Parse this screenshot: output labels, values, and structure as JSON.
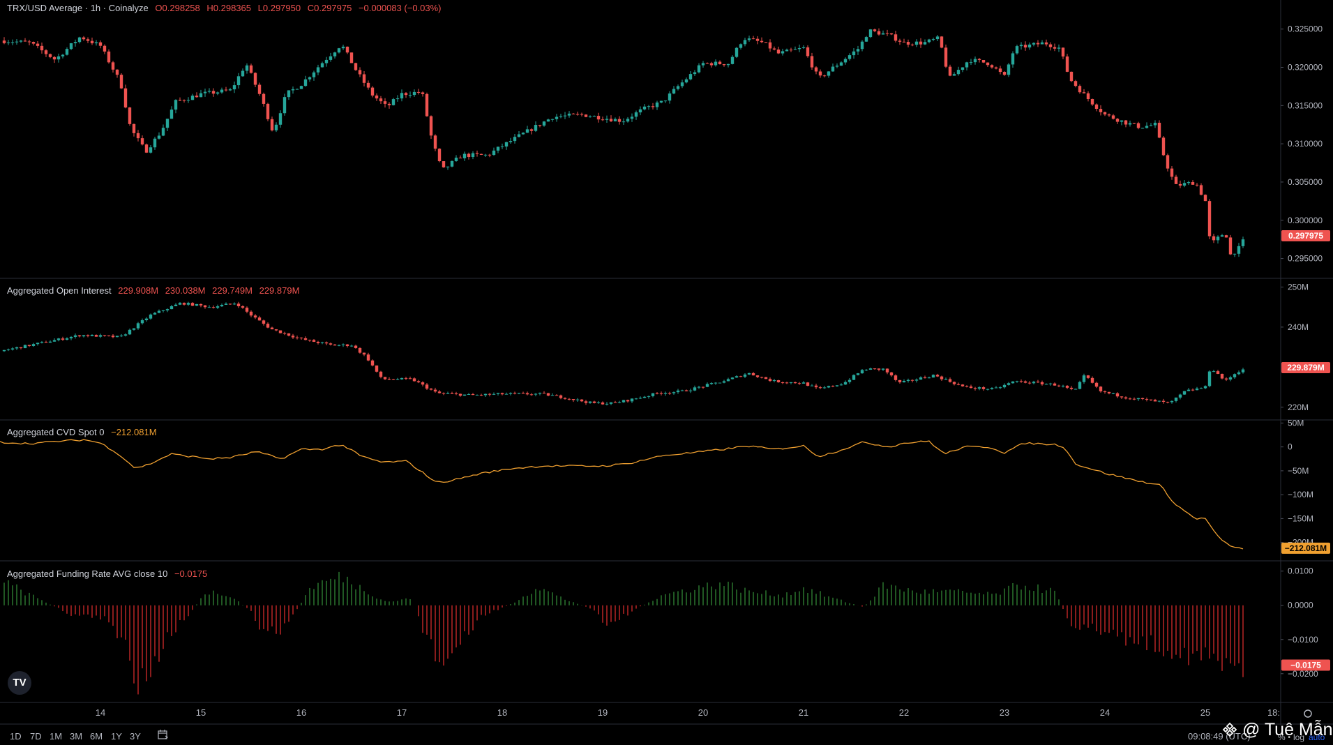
{
  "price_legend": {
    "title": "TRX/USD Average · 1h · Coinalyze",
    "open": "O0.298258",
    "high": "H0.298365",
    "low": "L0.297950",
    "close": "C0.297975",
    "change": "−0.000083 (−0.03%)"
  },
  "oi_legend": {
    "title": "Aggregated Open Interest",
    "open": "229.908M",
    "high": "230.038M",
    "low": "229.749M",
    "close": "229.879M"
  },
  "cvd_legend": {
    "title": "Aggregated CVD Spot 0",
    "value": "−212.081M"
  },
  "fr_legend": {
    "title": "Aggregated Funding Rate AVG close 10",
    "value": "−0.0175"
  },
  "colors": {
    "up": "#26a69a",
    "down": "#ef5350",
    "cvd": "#f0a030",
    "bg": "#000000",
    "grid": "#2a2e39"
  },
  "timeframes": [
    "1D",
    "7D",
    "1M",
    "3M",
    "6M",
    "1Y",
    "3Y"
  ],
  "clock": "09:08:49 (UTC)",
  "pct_label": "%",
  "log_label": "log",
  "auto_label": "auto",
  "watermark": "@ Tuệ Mẫn",
  "logo_text": "TV",
  "chart_data": [
    {
      "type": "candlestick",
      "title": "TRX/USD Average · 1h · Coinalyze",
      "x_ticks": [
        "14",
        "15",
        "16",
        "17",
        "18",
        "19",
        "20",
        "21",
        "22",
        "23",
        "24",
        "25",
        "18:"
      ],
      "y_ticks": [
        "0.325000",
        "0.320000",
        "0.315000",
        "0.310000",
        "0.305000",
        "0.300000",
        "0.295000"
      ],
      "ylim": [
        0.2925,
        0.3288
      ],
      "last_value_label": "0.297975",
      "close_series_days": [
        13.0,
        25.4
      ],
      "keypoints_close": [
        [
          13.0,
          0.3235
        ],
        [
          13.3,
          0.3232
        ],
        [
          13.55,
          0.321
        ],
        [
          13.8,
          0.324
        ],
        [
          14.0,
          0.3228
        ],
        [
          14.2,
          0.318
        ],
        [
          14.3,
          0.312
        ],
        [
          14.45,
          0.309
        ],
        [
          14.6,
          0.3115
        ],
        [
          14.75,
          0.3155
        ],
        [
          15.0,
          0.3165
        ],
        [
          15.3,
          0.317
        ],
        [
          15.45,
          0.3205
        ],
        [
          15.6,
          0.316
        ],
        [
          15.72,
          0.3115
        ],
        [
          15.85,
          0.3165
        ],
        [
          16.0,
          0.3178
        ],
        [
          16.2,
          0.3205
        ],
        [
          16.4,
          0.323
        ],
        [
          16.55,
          0.3195
        ],
        [
          16.7,
          0.3165
        ],
        [
          16.85,
          0.3148
        ],
        [
          17.0,
          0.3165
        ],
        [
          17.2,
          0.3168
        ],
        [
          17.3,
          0.3105
        ],
        [
          17.4,
          0.3065
        ],
        [
          17.6,
          0.3085
        ],
        [
          17.85,
          0.3085
        ],
        [
          18.1,
          0.3105
        ],
        [
          18.5,
          0.3135
        ],
        [
          18.8,
          0.3138
        ],
        [
          19.2,
          0.313
        ],
        [
          19.4,
          0.3145
        ],
        [
          19.6,
          0.3155
        ],
        [
          19.75,
          0.3175
        ],
        [
          20.0,
          0.3205
        ],
        [
          20.25,
          0.3205
        ],
        [
          20.4,
          0.3238
        ],
        [
          20.6,
          0.3232
        ],
        [
          20.75,
          0.3218
        ],
        [
          21.0,
          0.3225
        ],
        [
          21.15,
          0.3185
        ],
        [
          21.3,
          0.32
        ],
        [
          21.55,
          0.3225
        ],
        [
          21.65,
          0.3248
        ],
        [
          21.85,
          0.3242
        ],
        [
          22.0,
          0.3232
        ],
        [
          22.2,
          0.3232
        ],
        [
          22.35,
          0.3238
        ],
        [
          22.45,
          0.3185
        ],
        [
          22.65,
          0.321
        ],
        [
          22.85,
          0.3205
        ],
        [
          23.0,
          0.3188
        ],
        [
          23.1,
          0.3225
        ],
        [
          23.4,
          0.3232
        ],
        [
          23.55,
          0.3225
        ],
        [
          23.65,
          0.3185
        ],
        [
          23.8,
          0.3163
        ],
        [
          24.0,
          0.3138
        ],
        [
          24.2,
          0.3128
        ],
        [
          24.35,
          0.3122
        ],
        [
          24.5,
          0.3125
        ],
        [
          24.6,
          0.3078
        ],
        [
          24.7,
          0.3045
        ],
        [
          24.9,
          0.305
        ],
        [
          25.0,
          0.3025
        ],
        [
          25.05,
          0.2968
        ],
        [
          25.2,
          0.2985
        ],
        [
          25.25,
          0.2955
        ],
        [
          25.35,
          0.2965
        ],
        [
          25.4,
          0.29797
        ]
      ]
    },
    {
      "type": "candlestick",
      "title": "Aggregated Open Interest",
      "y_ticks": [
        "250M",
        "240M",
        "220M"
      ],
      "ylim": [
        217,
        252
      ],
      "last_value_label": "229.879M",
      "keypoints_close": [
        [
          13.0,
          234
        ],
        [
          13.4,
          236
        ],
        [
          13.8,
          238
        ],
        [
          14.2,
          237.5
        ],
        [
          14.5,
          243
        ],
        [
          14.8,
          246
        ],
        [
          15.1,
          245
        ],
        [
          15.35,
          246
        ],
        [
          15.5,
          243
        ],
        [
          15.7,
          239.5
        ],
        [
          16.0,
          237
        ],
        [
          16.3,
          235.5
        ],
        [
          16.5,
          235.5
        ],
        [
          16.65,
          232.5
        ],
        [
          16.8,
          227
        ],
        [
          17.1,
          227
        ],
        [
          17.35,
          223.5
        ],
        [
          17.7,
          223
        ],
        [
          18.0,
          223.3
        ],
        [
          18.4,
          223.3
        ],
        [
          18.6,
          222.5
        ],
        [
          18.9,
          221
        ],
        [
          19.1,
          221
        ],
        [
          19.3,
          222
        ],
        [
          19.55,
          223.5
        ],
        [
          19.8,
          224
        ],
        [
          20.2,
          226.5
        ],
        [
          20.45,
          228.5
        ],
        [
          20.7,
          226.5
        ],
        [
          21.0,
          226
        ],
        [
          21.15,
          224.5
        ],
        [
          21.4,
          226
        ],
        [
          21.6,
          229.5
        ],
        [
          21.8,
          229.5
        ],
        [
          21.95,
          226
        ],
        [
          22.3,
          228
        ],
        [
          22.6,
          225
        ],
        [
          22.9,
          224.5
        ],
        [
          23.1,
          226.5
        ],
        [
          23.35,
          226
        ],
        [
          23.55,
          225.5
        ],
        [
          23.7,
          224
        ],
        [
          23.8,
          228
        ],
        [
          23.95,
          224
        ],
        [
          24.2,
          222.5
        ],
        [
          24.5,
          221.5
        ],
        [
          24.65,
          221
        ],
        [
          24.8,
          224
        ],
        [
          25.0,
          225
        ],
        [
          25.05,
          230
        ],
        [
          25.2,
          226.5
        ],
        [
          25.3,
          228.5
        ],
        [
          25.4,
          229.879
        ]
      ]
    },
    {
      "type": "line",
      "title": "Aggregated CVD Spot 0",
      "y_ticks": [
        "50M",
        "0",
        "−50M",
        "−100M",
        "−150M",
        "−200M"
      ],
      "ylim": [
        -237,
        55
      ],
      "last_value_label": "−212.081M",
      "points": [
        [
          13.0,
          10
        ],
        [
          13.3,
          7
        ],
        [
          13.6,
          12
        ],
        [
          13.85,
          15
        ],
        [
          14.0,
          8
        ],
        [
          14.15,
          -10
        ],
        [
          14.35,
          -45
        ],
        [
          14.5,
          -35
        ],
        [
          14.7,
          -15
        ],
        [
          14.9,
          -20
        ],
        [
          15.1,
          -25
        ],
        [
          15.3,
          -22
        ],
        [
          15.55,
          -10
        ],
        [
          15.8,
          -25
        ],
        [
          16.0,
          -5
        ],
        [
          16.2,
          -5
        ],
        [
          16.4,
          5
        ],
        [
          16.6,
          -20
        ],
        [
          16.8,
          -32
        ],
        [
          17.05,
          -30
        ],
        [
          17.35,
          -75
        ],
        [
          17.5,
          -70
        ],
        [
          17.8,
          -55
        ],
        [
          18.1,
          -45
        ],
        [
          18.4,
          -40
        ],
        [
          18.7,
          -40
        ],
        [
          19.0,
          -40
        ],
        [
          19.25,
          -35
        ],
        [
          19.6,
          -18
        ],
        [
          19.9,
          -12
        ],
        [
          20.2,
          -5
        ],
        [
          20.45,
          2
        ],
        [
          20.7,
          -5
        ],
        [
          21.0,
          2
        ],
        [
          21.15,
          -20
        ],
        [
          21.35,
          -8
        ],
        [
          21.6,
          10
        ],
        [
          21.85,
          0
        ],
        [
          22.0,
          8
        ],
        [
          22.25,
          12
        ],
        [
          22.4,
          -15
        ],
        [
          22.6,
          0
        ],
        [
          22.85,
          0
        ],
        [
          23.0,
          -12
        ],
        [
          23.2,
          8
        ],
        [
          23.5,
          5
        ],
        [
          23.6,
          0
        ],
        [
          23.7,
          -35
        ],
        [
          24.0,
          -55
        ],
        [
          24.3,
          -70
        ],
        [
          24.55,
          -80
        ],
        [
          24.7,
          -120
        ],
        [
          24.9,
          -150
        ],
        [
          25.0,
          -150
        ],
        [
          25.15,
          -195
        ],
        [
          25.3,
          -212
        ],
        [
          25.4,
          -212.081
        ]
      ]
    },
    {
      "type": "bar",
      "title": "Aggregated Funding Rate AVG close 10",
      "y_ticks": [
        "0.0100",
        "0.0000",
        "−0.0100",
        "−0.0200"
      ],
      "ylim": [
        -0.028,
        0.0128
      ],
      "last_value_label": "−0.0175",
      "keypoints": [
        [
          13.0,
          0.0075
        ],
        [
          13.3,
          0.003
        ],
        [
          13.7,
          -0.0025
        ],
        [
          14.05,
          -0.004
        ],
        [
          14.25,
          -0.012
        ],
        [
          14.35,
          -0.022
        ],
        [
          14.5,
          -0.017
        ],
        [
          14.7,
          -0.008
        ],
        [
          14.9,
          -0.002
        ],
        [
          15.05,
          0.004
        ],
        [
          15.3,
          0.003
        ],
        [
          15.5,
          -0.002
        ],
        [
          15.65,
          -0.009
        ],
        [
          15.85,
          -0.006
        ],
        [
          16.1,
          0.0055
        ],
        [
          16.4,
          0.0085
        ],
        [
          16.6,
          0.005
        ],
        [
          16.85,
          0.001
        ],
        [
          17.1,
          0.002
        ],
        [
          17.25,
          -0.01
        ],
        [
          17.4,
          -0.017
        ],
        [
          17.6,
          -0.011
        ],
        [
          17.8,
          -0.003
        ],
        [
          18.1,
          0.0005
        ],
        [
          18.35,
          0.0055
        ],
        [
          18.6,
          0.002
        ],
        [
          18.9,
          -0.001
        ],
        [
          19.05,
          -0.006
        ],
        [
          19.3,
          -0.0015
        ],
        [
          19.6,
          0.003
        ],
        [
          19.9,
          0.005
        ],
        [
          20.2,
          0.0065
        ],
        [
          20.45,
          0.004
        ],
        [
          20.8,
          0.003
        ],
        [
          21.0,
          0.005
        ],
        [
          21.3,
          0.002
        ],
        [
          21.6,
          -0.0005
        ],
        [
          21.8,
          0.006
        ],
        [
          22.1,
          0.004
        ],
        [
          22.5,
          0.004
        ],
        [
          22.9,
          0.003
        ],
        [
          23.15,
          0.006
        ],
        [
          23.5,
          0.004
        ],
        [
          23.65,
          -0.005
        ],
        [
          24.0,
          -0.008
        ],
        [
          24.4,
          -0.011
        ],
        [
          24.7,
          -0.013
        ],
        [
          24.95,
          -0.015
        ],
        [
          25.2,
          -0.018
        ],
        [
          25.4,
          -0.0175
        ]
      ]
    }
  ]
}
